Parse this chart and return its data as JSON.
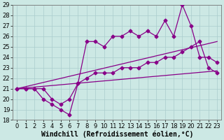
{
  "xlabel": "Windchill (Refroidissement éolien,°C)",
  "xlim": [
    -0.5,
    23.5
  ],
  "ylim": [
    18,
    29
  ],
  "xticks": [
    0,
    1,
    2,
    3,
    4,
    5,
    6,
    7,
    8,
    9,
    10,
    11,
    12,
    13,
    14,
    15,
    16,
    17,
    18,
    19,
    20,
    21,
    22,
    23
  ],
  "yticks": [
    18,
    19,
    20,
    21,
    22,
    23,
    24,
    25,
    26,
    27,
    28,
    29
  ],
  "background_color": "#cce8e4",
  "grid_color": "#aacccc",
  "line_color": "#880088",
  "xlabel_fontsize": 7,
  "tick_fontsize": 6,
  "marker": "D",
  "marker_size": 2.5,
  "line_width": 0.9,
  "line1_x": [
    0,
    1,
    2,
    3,
    4,
    5,
    6,
    7,
    8,
    9,
    10,
    11,
    12,
    13,
    14,
    15,
    16,
    17,
    18,
    19,
    20,
    21,
    22,
    23
  ],
  "line1_y": [
    21,
    21,
    21,
    20,
    19.5,
    19,
    18.5,
    21.5,
    25.5,
    25.5,
    25,
    26,
    26,
    26.5,
    26,
    26.5,
    26,
    27.5,
    26,
    29,
    27,
    24,
    24,
    23.5
  ],
  "line2_x": [
    0,
    1,
    2,
    3,
    4,
    5,
    6,
    7,
    8,
    9,
    10,
    11,
    12,
    13,
    14,
    15,
    16,
    17,
    18,
    19,
    20,
    21,
    22,
    23
  ],
  "line2_y": [
    21,
    21,
    21,
    21,
    20,
    19.5,
    20,
    21.5,
    22,
    22.5,
    22.5,
    22.5,
    23,
    23,
    23,
    23.5,
    23.5,
    24,
    24,
    24.5,
    25,
    25.5,
    23,
    22.5
  ],
  "trend1_x": [
    0,
    23
  ],
  "trend1_y": [
    21,
    22.7
  ],
  "trend2_x": [
    0,
    23
  ],
  "trend2_y": [
    21,
    25.5
  ]
}
